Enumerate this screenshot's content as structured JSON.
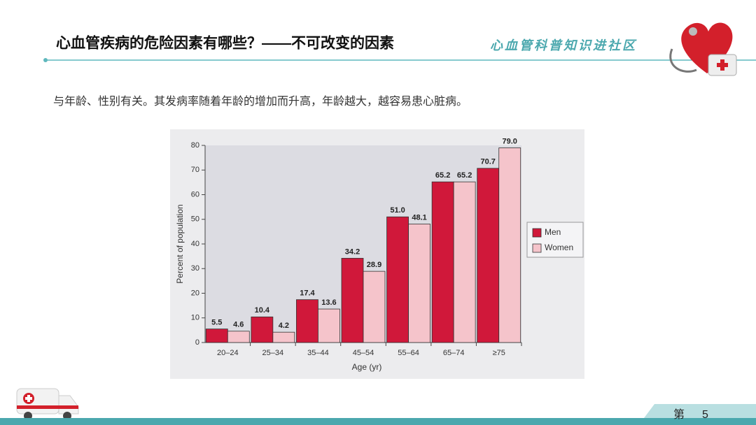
{
  "header": {
    "title": "心血管疾病的危险因素有哪些？——不可改变的因素",
    "brand": "心血管科普知识进社区"
  },
  "body": {
    "text": "与年龄、性别有关。其发病率随着年龄的增加而升高，年龄越大，越容易患心脏病。"
  },
  "footer": {
    "page_label": "第",
    "page_number": "5"
  },
  "chart_data": {
    "type": "bar",
    "x_label": "Age (yr)",
    "y_label": "Percent of population",
    "categories": [
      "20–24",
      "25–34",
      "35–44",
      "45–54",
      "55–64",
      "65–74",
      "≥75"
    ],
    "series": [
      {
        "name": "Men",
        "color": "#d0183a",
        "values": [
          5.5,
          10.4,
          17.4,
          34.2,
          51,
          65.2,
          70.7
        ],
        "value_labels": [
          "5.5",
          "10.4",
          "17.4",
          "34.2",
          "51.0",
          "65.2",
          "70.7"
        ]
      },
      {
        "name": "Women",
        "color": "#f5c4cb",
        "values": [
          4.6,
          4.2,
          13.6,
          28.9,
          48.1,
          65.2,
          79
        ],
        "value_labels": [
          "4.6",
          "4.2",
          "13.6",
          "28.9",
          "48.1",
          "65.2",
          "79.0"
        ]
      }
    ],
    "ylim": [
      0,
      80
    ],
    "yticks": [
      0,
      10,
      20,
      30,
      40,
      50,
      60,
      70,
      80
    ],
    "legend": "right"
  }
}
